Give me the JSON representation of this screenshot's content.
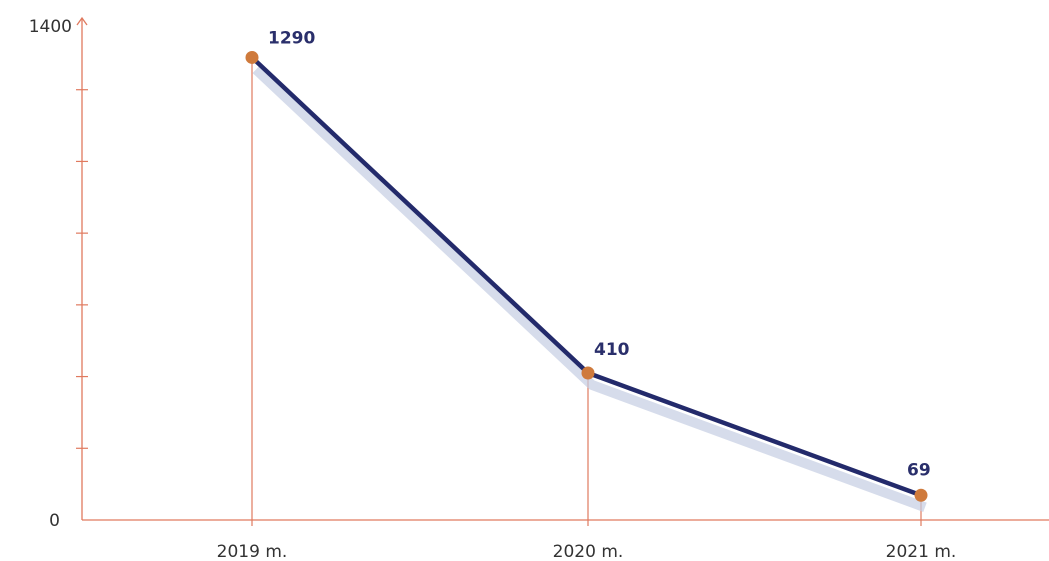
{
  "chart_data": {
    "type": "line",
    "categories": [
      "2019 m.",
      "2020 m.",
      "2021 m."
    ],
    "values": [
      1290,
      410,
      69
    ],
    "data_labels": [
      "1290",
      "410",
      "69"
    ],
    "ylim": [
      0,
      1400
    ],
    "y_tick_labels": [
      "1400",
      "0"
    ],
    "y_minor_tick_count": 6,
    "title": "",
    "xlabel": "",
    "ylabel": "",
    "grid": false,
    "drop_lines": true
  },
  "colors": {
    "axis": "#e07a5f",
    "line": "#232a6b",
    "marker": "#cf7a3c",
    "shadow": "#c5cde3",
    "label": "#2a2f6b"
  }
}
